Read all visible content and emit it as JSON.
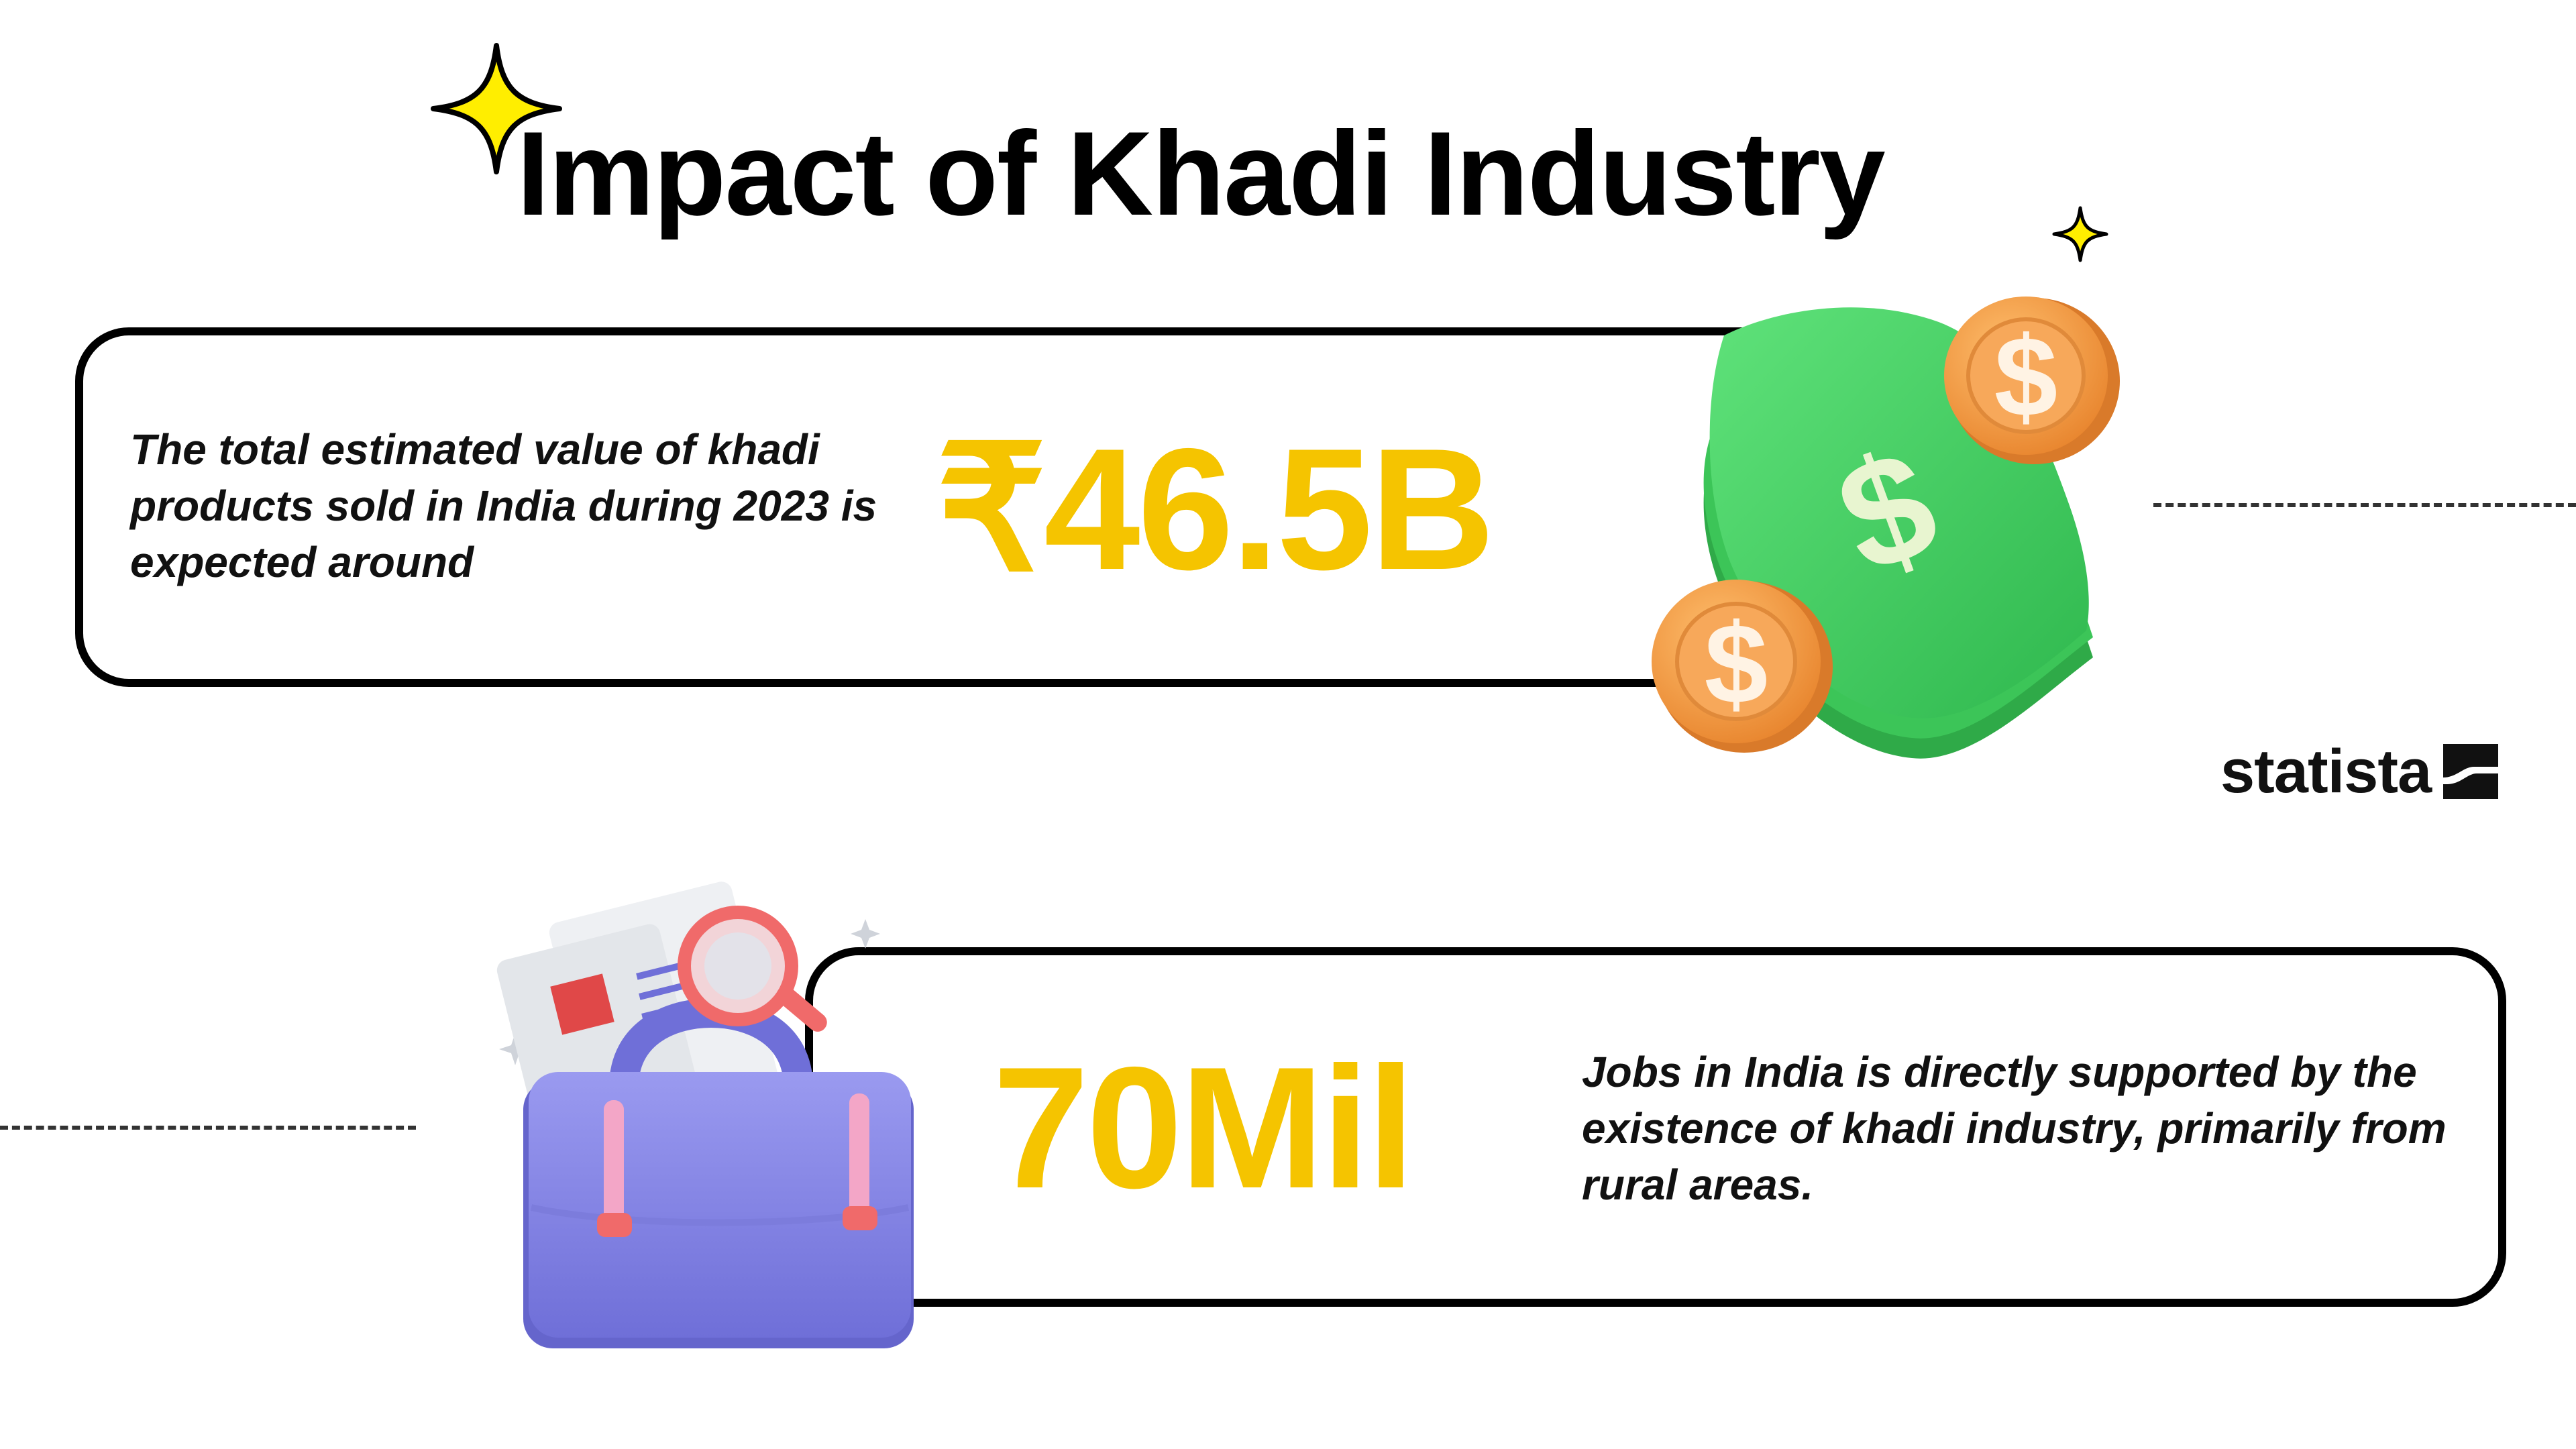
{
  "header": {
    "title": "Impact of Khadi Industry"
  },
  "cards": [
    {
      "description": "The total estimated value of khadi products sold in India during 2023 is expected around",
      "value": "₹46.5B"
    },
    {
      "value": "70Mil",
      "description": "Jobs in India is directly supported by the existence of khadi industry, primarily from rural areas."
    }
  ],
  "brand": {
    "name": "statista"
  },
  "colors": {
    "accent": "#f5c400",
    "sparkle": "#ffee00",
    "money_green": "#4cd964",
    "coin_orange": "#f4a048",
    "briefcase_purple": "#8a8ae6",
    "text": "#000000"
  },
  "icons": {
    "money": "money-stack-icon",
    "briefcase": "briefcase-icon",
    "sparkle": "sparkle-icon"
  }
}
